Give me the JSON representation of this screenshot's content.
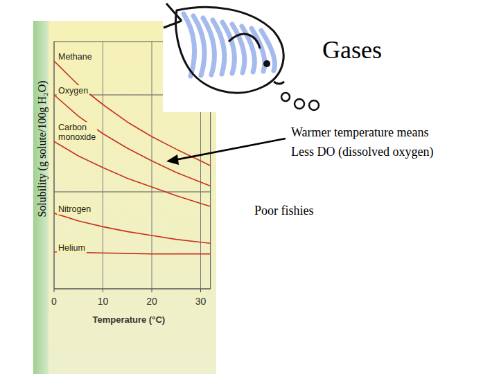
{
  "chart_data": {
    "type": "line",
    "title": "Gases",
    "x_label": "Temperature (°C)",
    "y_label": "Solubility (g solute/100g H₂O)",
    "x": [
      0,
      5,
      10,
      15,
      20,
      25,
      30,
      32
    ],
    "series": [
      {
        "name": "Methane",
        "color": "#c8321e",
        "values": [
          2.35,
          2.1,
          1.9,
          1.72,
          1.57,
          1.44,
          1.32,
          1.27
        ]
      },
      {
        "name": "Oxygen",
        "color": "#c8321e",
        "values": [
          2.0,
          1.78,
          1.6,
          1.45,
          1.32,
          1.2,
          1.1,
          1.06
        ]
      },
      {
        "name": "Carbon monoxide",
        "color": "#c8321e",
        "values": [
          1.52,
          1.37,
          1.25,
          1.14,
          1.05,
          0.96,
          0.88,
          0.85
        ]
      },
      {
        "name": "Nitrogen",
        "color": "#c8321e",
        "values": [
          0.78,
          0.7,
          0.64,
          0.59,
          0.55,
          0.51,
          0.48,
          0.47
        ]
      },
      {
        "name": "Helium",
        "color": "#c8321e",
        "values": [
          0.38,
          0.375,
          0.37,
          0.365,
          0.36,
          0.36,
          0.36,
          0.36
        ]
      }
    ],
    "xlim": [
      0,
      32
    ],
    "xticks": [
      0,
      10,
      20,
      30
    ],
    "ylim": [
      0,
      2.55
    ],
    "yticks": [
      0,
      1,
      2
    ],
    "grid": true,
    "tick_labels": "x",
    "annotations": [
      "Warmer temperature means",
      "Less DO (dissolved oxygen)",
      "Poor fishies"
    ]
  }
}
